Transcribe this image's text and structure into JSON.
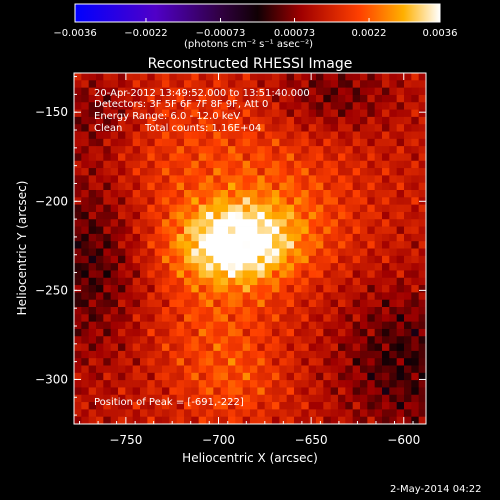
{
  "chart_data": {
    "type": "heatmap",
    "title": "Reconstructed RHESSI Image",
    "xlabel": "Heliocentric X (arcsec)",
    "ylabel": "Heliocentric Y (arcsec)",
    "xlim": [
      -778,
      -588
    ],
    "ylim": [
      -325,
      -128
    ],
    "x_ticks": [
      -750,
      -700,
      -650,
      -600
    ],
    "x_tick_labels": [
      "−750",
      "−700",
      "−650",
      "−600"
    ],
    "y_ticks": [
      -150,
      -200,
      -250,
      -300
    ],
    "y_tick_labels": [
      "−150",
      "−200",
      "−250",
      "−300"
    ],
    "colorbar": {
      "range": [
        -0.0036,
        0.0036
      ],
      "ticks": [
        -0.0036,
        -0.0022,
        -0.00073,
        0.00073,
        0.0022,
        0.0036
      ],
      "tick_labels": [
        "−0.0036",
        "−0.0022",
        "−0.00073",
        "0.00073",
        "0.0022",
        "0.0036"
      ],
      "unit_label": "(photons cm⁻² s⁻¹ asec⁻²)"
    },
    "annotations": {
      "time_range": "20-Apr-2012 13:49:52.000 to 13:51:40.000",
      "detectors": "Detectors: 3F 5F 6F 7F 8F 9F, Att 0",
      "energy": "Energy Range: 6.0 - 12.0 keV",
      "clean": "Clean",
      "counts": "Total counts: 1.16E+04",
      "peak": "Position of Peak = [-691,-222]"
    },
    "peak_position": [
      -691,
      -222
    ],
    "timestamp": "2-May-2014 04:22"
  }
}
